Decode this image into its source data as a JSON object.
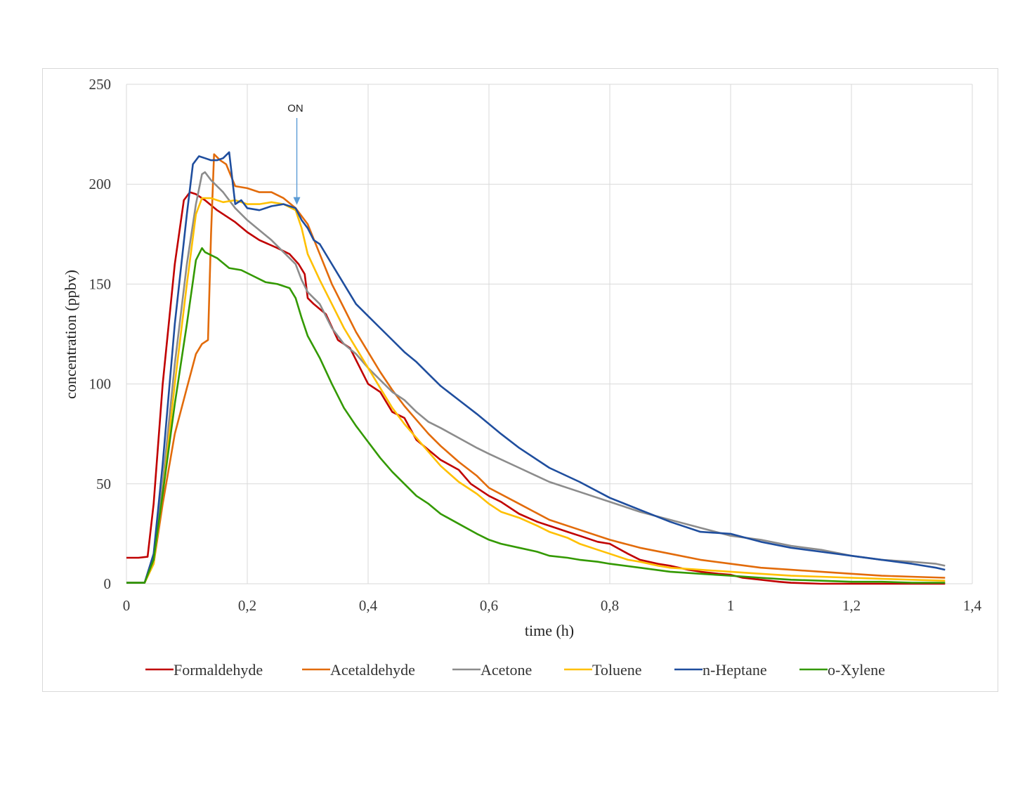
{
  "chart_data": {
    "type": "line",
    "xlabel": "time (h)",
    "ylabel": "concentration (ppbv)",
    "xlim": [
      0,
      1.4
    ],
    "ylim": [
      0,
      250
    ],
    "x_ticks": [
      "0",
      "0,2",
      "0,4",
      "0,6",
      "0,8",
      "1",
      "1,2",
      "1,4"
    ],
    "y_ticks": [
      "0",
      "50",
      "100",
      "150",
      "200",
      "250"
    ],
    "grid": true,
    "legend_position": "bottom",
    "annotation": {
      "text": "ON",
      "x": 0.282,
      "y": 190
    },
    "series": [
      {
        "name": "Formaldehyde",
        "color": "#c00000",
        "points": [
          [
            0,
            13
          ],
          [
            0.02,
            13
          ],
          [
            0.035,
            13.5
          ],
          [
            0.045,
            40
          ],
          [
            0.06,
            100
          ],
          [
            0.08,
            160
          ],
          [
            0.095,
            192
          ],
          [
            0.105,
            196
          ],
          [
            0.115,
            195
          ],
          [
            0.13,
            192
          ],
          [
            0.15,
            187
          ],
          [
            0.18,
            181
          ],
          [
            0.2,
            176
          ],
          [
            0.22,
            172
          ],
          [
            0.25,
            168
          ],
          [
            0.27,
            165
          ],
          [
            0.285,
            160
          ],
          [
            0.295,
            155
          ],
          [
            0.3,
            143
          ],
          [
            0.31,
            140
          ],
          [
            0.33,
            135
          ],
          [
            0.35,
            122
          ],
          [
            0.37,
            118
          ],
          [
            0.38,
            112
          ],
          [
            0.4,
            100
          ],
          [
            0.42,
            96
          ],
          [
            0.44,
            86
          ],
          [
            0.46,
            83
          ],
          [
            0.48,
            72
          ],
          [
            0.5,
            67
          ],
          [
            0.52,
            62
          ],
          [
            0.55,
            57
          ],
          [
            0.57,
            50
          ],
          [
            0.6,
            44
          ],
          [
            0.62,
            41
          ],
          [
            0.65,
            35
          ],
          [
            0.68,
            31
          ],
          [
            0.7,
            29
          ],
          [
            0.73,
            26
          ],
          [
            0.75,
            24
          ],
          [
            0.78,
            21
          ],
          [
            0.8,
            20
          ],
          [
            0.83,
            15
          ],
          [
            0.85,
            12
          ],
          [
            0.88,
            10
          ],
          [
            0.9,
            9
          ],
          [
            0.93,
            7
          ],
          [
            0.95,
            6
          ],
          [
            0.98,
            5
          ],
          [
            1.0,
            4.5
          ],
          [
            1.02,
            3
          ],
          [
            1.05,
            2
          ],
          [
            1.08,
            1
          ],
          [
            1.1,
            0.5
          ],
          [
            1.15,
            0
          ],
          [
            1.2,
            0
          ],
          [
            1.25,
            0
          ],
          [
            1.3,
            0
          ],
          [
            1.355,
            0
          ]
        ]
      },
      {
        "name": "Acetaldehyde",
        "color": "#e26b0a",
        "points": [
          [
            0,
            0.5
          ],
          [
            0.03,
            0.5
          ],
          [
            0.045,
            10
          ],
          [
            0.06,
            40
          ],
          [
            0.08,
            75
          ],
          [
            0.1,
            98
          ],
          [
            0.115,
            115
          ],
          [
            0.125,
            120
          ],
          [
            0.135,
            122
          ],
          [
            0.14,
            175
          ],
          [
            0.145,
            215
          ],
          [
            0.155,
            212
          ],
          [
            0.165,
            210
          ],
          [
            0.18,
            199
          ],
          [
            0.2,
            198
          ],
          [
            0.22,
            196
          ],
          [
            0.24,
            196
          ],
          [
            0.26,
            193
          ],
          [
            0.28,
            188
          ],
          [
            0.3,
            180
          ],
          [
            0.32,
            165
          ],
          [
            0.34,
            150
          ],
          [
            0.36,
            138
          ],
          [
            0.38,
            126
          ],
          [
            0.4,
            116
          ],
          [
            0.42,
            106
          ],
          [
            0.44,
            97
          ],
          [
            0.46,
            89
          ],
          [
            0.48,
            82
          ],
          [
            0.5,
            75
          ],
          [
            0.52,
            69
          ],
          [
            0.55,
            61
          ],
          [
            0.58,
            54
          ],
          [
            0.6,
            48
          ],
          [
            0.65,
            40
          ],
          [
            0.7,
            32
          ],
          [
            0.75,
            27
          ],
          [
            0.8,
            22
          ],
          [
            0.85,
            18
          ],
          [
            0.9,
            15
          ],
          [
            0.95,
            12
          ],
          [
            1.0,
            10
          ],
          [
            1.05,
            8
          ],
          [
            1.1,
            7
          ],
          [
            1.15,
            6
          ],
          [
            1.2,
            5
          ],
          [
            1.25,
            4
          ],
          [
            1.3,
            3.5
          ],
          [
            1.355,
            3
          ]
        ]
      },
      {
        "name": "Acetone",
        "color": "#8c8c8c",
        "points": [
          [
            0,
            0.5
          ],
          [
            0.03,
            0.5
          ],
          [
            0.045,
            12
          ],
          [
            0.06,
            50
          ],
          [
            0.08,
            110
          ],
          [
            0.1,
            160
          ],
          [
            0.115,
            190
          ],
          [
            0.125,
            205
          ],
          [
            0.13,
            206
          ],
          [
            0.14,
            202
          ],
          [
            0.16,
            196
          ],
          [
            0.18,
            188
          ],
          [
            0.2,
            182
          ],
          [
            0.22,
            177
          ],
          [
            0.24,
            172
          ],
          [
            0.26,
            166
          ],
          [
            0.28,
            160
          ],
          [
            0.29,
            152
          ],
          [
            0.3,
            146
          ],
          [
            0.32,
            140
          ],
          [
            0.34,
            128
          ],
          [
            0.36,
            120
          ],
          [
            0.38,
            115
          ],
          [
            0.4,
            108
          ],
          [
            0.42,
            102
          ],
          [
            0.44,
            96
          ],
          [
            0.46,
            92
          ],
          [
            0.48,
            86
          ],
          [
            0.5,
            81
          ],
          [
            0.52,
            78
          ],
          [
            0.55,
            73
          ],
          [
            0.58,
            68
          ],
          [
            0.6,
            65
          ],
          [
            0.65,
            58
          ],
          [
            0.7,
            51
          ],
          [
            0.75,
            46
          ],
          [
            0.8,
            41
          ],
          [
            0.85,
            36
          ],
          [
            0.9,
            32
          ],
          [
            0.95,
            28
          ],
          [
            1.0,
            24
          ],
          [
            1.05,
            22
          ],
          [
            1.1,
            19
          ],
          [
            1.15,
            17
          ],
          [
            1.2,
            14
          ],
          [
            1.25,
            12
          ],
          [
            1.3,
            11
          ],
          [
            1.34,
            10
          ],
          [
            1.355,
            9
          ]
        ]
      },
      {
        "name": "Toluene",
        "color": "#ffc000",
        "points": [
          [
            0,
            0.5
          ],
          [
            0.03,
            0.5
          ],
          [
            0.045,
            10
          ],
          [
            0.06,
            45
          ],
          [
            0.08,
            100
          ],
          [
            0.1,
            150
          ],
          [
            0.115,
            185
          ],
          [
            0.125,
            193
          ],
          [
            0.14,
            193
          ],
          [
            0.16,
            191
          ],
          [
            0.18,
            192
          ],
          [
            0.2,
            190
          ],
          [
            0.22,
            190
          ],
          [
            0.24,
            191
          ],
          [
            0.26,
            190
          ],
          [
            0.28,
            187
          ],
          [
            0.29,
            178
          ],
          [
            0.3,
            165
          ],
          [
            0.32,
            152
          ],
          [
            0.34,
            140
          ],
          [
            0.36,
            128
          ],
          [
            0.38,
            118
          ],
          [
            0.4,
            108
          ],
          [
            0.42,
            98
          ],
          [
            0.44,
            88
          ],
          [
            0.46,
            80
          ],
          [
            0.48,
            73
          ],
          [
            0.5,
            66
          ],
          [
            0.52,
            59
          ],
          [
            0.55,
            51
          ],
          [
            0.58,
            45
          ],
          [
            0.6,
            40
          ],
          [
            0.62,
            36
          ],
          [
            0.65,
            33
          ],
          [
            0.68,
            29
          ],
          [
            0.7,
            26
          ],
          [
            0.73,
            23
          ],
          [
            0.75,
            20
          ],
          [
            0.78,
            17
          ],
          [
            0.8,
            15
          ],
          [
            0.83,
            12
          ],
          [
            0.85,
            11
          ],
          [
            0.88,
            9
          ],
          [
            0.9,
            8
          ],
          [
            0.95,
            7
          ],
          [
            1.0,
            6
          ],
          [
            1.05,
            5
          ],
          [
            1.1,
            4
          ],
          [
            1.15,
            3.5
          ],
          [
            1.2,
            3
          ],
          [
            1.25,
            2.5
          ],
          [
            1.3,
            2
          ],
          [
            1.355,
            1.5
          ]
        ]
      },
      {
        "name": "n-Heptane",
        "color": "#1f4e9e",
        "points": [
          [
            0,
            0.5
          ],
          [
            0.03,
            0.5
          ],
          [
            0.045,
            15
          ],
          [
            0.06,
            60
          ],
          [
            0.08,
            130
          ],
          [
            0.1,
            185
          ],
          [
            0.11,
            210
          ],
          [
            0.12,
            214
          ],
          [
            0.13,
            213
          ],
          [
            0.14,
            212
          ],
          [
            0.15,
            212
          ],
          [
            0.16,
            213
          ],
          [
            0.17,
            216
          ],
          [
            0.18,
            190
          ],
          [
            0.19,
            192
          ],
          [
            0.2,
            188
          ],
          [
            0.22,
            187
          ],
          [
            0.24,
            189
          ],
          [
            0.26,
            190
          ],
          [
            0.28,
            188
          ],
          [
            0.29,
            182
          ],
          [
            0.3,
            178
          ],
          [
            0.31,
            172
          ],
          [
            0.32,
            170
          ],
          [
            0.34,
            160
          ],
          [
            0.36,
            150
          ],
          [
            0.38,
            140
          ],
          [
            0.4,
            134
          ],
          [
            0.42,
            128
          ],
          [
            0.44,
            122
          ],
          [
            0.46,
            116
          ],
          [
            0.48,
            111
          ],
          [
            0.5,
            105
          ],
          [
            0.52,
            99
          ],
          [
            0.55,
            92
          ],
          [
            0.58,
            85
          ],
          [
            0.6,
            80
          ],
          [
            0.62,
            75
          ],
          [
            0.65,
            68
          ],
          [
            0.7,
            58
          ],
          [
            0.75,
            51
          ],
          [
            0.8,
            43
          ],
          [
            0.85,
            37
          ],
          [
            0.9,
            31
          ],
          [
            0.95,
            26
          ],
          [
            1.0,
            25
          ],
          [
            1.05,
            21
          ],
          [
            1.1,
            18
          ],
          [
            1.15,
            16
          ],
          [
            1.2,
            14
          ],
          [
            1.25,
            12
          ],
          [
            1.3,
            10
          ],
          [
            1.34,
            8
          ],
          [
            1.355,
            7
          ]
        ]
      },
      {
        "name": "o-Xylene",
        "color": "#339900",
        "points": [
          [
            0,
            0.5
          ],
          [
            0.03,
            0.5
          ],
          [
            0.045,
            12
          ],
          [
            0.06,
            45
          ],
          [
            0.08,
            90
          ],
          [
            0.1,
            130
          ],
          [
            0.115,
            162
          ],
          [
            0.125,
            168
          ],
          [
            0.13,
            166
          ],
          [
            0.15,
            163
          ],
          [
            0.17,
            158
          ],
          [
            0.19,
            157
          ],
          [
            0.21,
            154
          ],
          [
            0.23,
            151
          ],
          [
            0.25,
            150
          ],
          [
            0.27,
            148
          ],
          [
            0.28,
            143
          ],
          [
            0.29,
            133
          ],
          [
            0.3,
            124
          ],
          [
            0.32,
            113
          ],
          [
            0.34,
            100
          ],
          [
            0.36,
            88
          ],
          [
            0.38,
            79
          ],
          [
            0.4,
            71
          ],
          [
            0.42,
            63
          ],
          [
            0.44,
            56
          ],
          [
            0.46,
            50
          ],
          [
            0.48,
            44
          ],
          [
            0.5,
            40
          ],
          [
            0.52,
            35
          ],
          [
            0.55,
            30
          ],
          [
            0.58,
            25
          ],
          [
            0.6,
            22
          ],
          [
            0.62,
            20
          ],
          [
            0.65,
            18
          ],
          [
            0.68,
            16
          ],
          [
            0.7,
            14
          ],
          [
            0.73,
            13
          ],
          [
            0.75,
            12
          ],
          [
            0.78,
            11
          ],
          [
            0.8,
            10
          ],
          [
            0.85,
            8
          ],
          [
            0.9,
            6
          ],
          [
            0.95,
            5
          ],
          [
            1.0,
            4
          ],
          [
            1.05,
            3
          ],
          [
            1.1,
            2
          ],
          [
            1.15,
            1.5
          ],
          [
            1.2,
            1
          ],
          [
            1.25,
            1
          ],
          [
            1.3,
            0.5
          ],
          [
            1.355,
            0.5
          ]
        ]
      }
    ]
  }
}
